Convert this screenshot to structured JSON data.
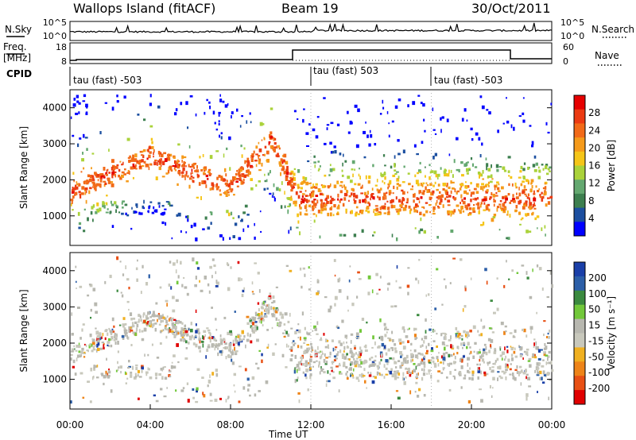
{
  "header": {
    "station": "Wallops Island (fitACF)",
    "beam": "Beam 19",
    "date": "30/Oct/2011"
  },
  "noise_panel": {
    "left_label": "N.Sky",
    "right_label": "N.Search",
    "left_ticks": [
      "10^5",
      "10^0"
    ],
    "right_ticks": [
      "10^5",
      "10^0"
    ]
  },
  "freq_panel": {
    "left_label_1": "Freq.",
    "left_label_2": "[MHz]",
    "right_label": "Nave",
    "left_ticks": [
      "18",
      "8"
    ],
    "right_ticks": [
      "60",
      "0"
    ]
  },
  "cpid_panel": {
    "label": "CPID",
    "modes": [
      "tau (fast) -503",
      "tau (fast) 503",
      "tau (fast) -503"
    ],
    "change_hours": [
      12.0,
      18.0
    ]
  },
  "colors": {
    "power_scale": [
      "#0000ff",
      "#1c4fa0",
      "#3d7f4f",
      "#64a870",
      "#aad23a",
      "#f5c518",
      "#f59a1a",
      "#f26a18",
      "#ec3a12",
      "#e60000"
    ],
    "velocity_scale": [
      "#1a3fa8",
      "#2c5fa8",
      "#3b8a3f",
      "#72c83a",
      "#b8b8b0",
      "#c8c8bc",
      "#f0b020",
      "#ee8418",
      "#e85014",
      "#e00000"
    ]
  },
  "chart_data": [
    {
      "type": "heatmap",
      "title": "Power",
      "ylabel": "Slant Range [km]",
      "ylim": [
        180,
        4500
      ],
      "yticks": [
        1000,
        2000,
        3000,
        4000
      ],
      "xlim": [
        0,
        24
      ],
      "colorbar_label": "Power [dB]",
      "colorbar_ticks": [
        "4",
        "8",
        "12",
        "16",
        "20",
        "24",
        "28"
      ],
      "colorbar_range": [
        0,
        32
      ]
    },
    {
      "type": "heatmap",
      "title": "Velocity",
      "ylabel": "Slant Range [km]",
      "ylim": [
        180,
        4500
      ],
      "yticks": [
        1000,
        2000,
        3000,
        4000
      ],
      "xlim": [
        0,
        24
      ],
      "colorbar_label": "Velocity [m s⁻¹]",
      "colorbar_ticks": [
        "200",
        "100",
        "50",
        "15",
        "-15",
        "-50",
        "-100",
        "-200"
      ],
      "colorbar_range": [
        -250,
        250
      ]
    }
  ],
  "x_axis": {
    "label": "Time UT",
    "ticks": [
      "00:00",
      "04:00",
      "08:00",
      "12:00",
      "16:00",
      "20:00",
      "00:00"
    ]
  }
}
